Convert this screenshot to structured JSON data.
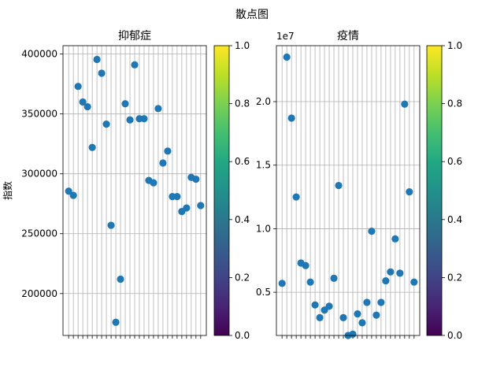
{
  "figure": {
    "suptitle": "散点图"
  },
  "colorbar": {
    "ticks": [
      "0.0",
      "0.2",
      "0.4",
      "0.6",
      "0.8",
      "1.0"
    ]
  },
  "chart_data": [
    {
      "type": "scatter",
      "title": "抑郁症",
      "ylabel": "指数",
      "xlabel": "",
      "ylim": [
        165000,
        407000
      ],
      "yticks": [
        200000,
        250000,
        300000,
        350000,
        400000
      ],
      "ytick_labels": [
        "200000",
        "250000",
        "300000",
        "350000",
        "400000"
      ],
      "offset_text": "",
      "grid": true,
      "marker_color": "#1f77b4",
      "values": [
        285500,
        282000,
        373000,
        360000,
        356000,
        322000,
        395500,
        384000,
        341500,
        257000,
        176000,
        212000,
        358500,
        345000,
        391000,
        346000,
        346000,
        294500,
        292500,
        354500,
        309000,
        319000,
        281000,
        281000,
        268500,
        271500,
        297000,
        295500,
        273500
      ]
    },
    {
      "type": "scatter",
      "title": "疫情",
      "ylabel": "",
      "xlabel": "",
      "ylim": [
        1600000,
        24400000
      ],
      "yticks": [
        5000000,
        10000000,
        15000000,
        20000000
      ],
      "ytick_labels": [
        "0.5",
        "1.0",
        "1.5",
        "2.0"
      ],
      "offset_text": "1e7",
      "grid": true,
      "marker_color": "#1f77b4",
      "values": [
        5700000,
        23500000,
        18700000,
        12500000,
        7300000,
        7100000,
        5800000,
        4000000,
        3000000,
        3600000,
        3900000,
        6100000,
        13400000,
        3000000,
        1600000,
        1700000,
        3300000,
        2600000,
        4200000,
        9800000,
        3200000,
        4200000,
        5900000,
        6600000,
        9200000,
        6500000,
        19800000,
        12900000,
        5800000
      ]
    }
  ]
}
